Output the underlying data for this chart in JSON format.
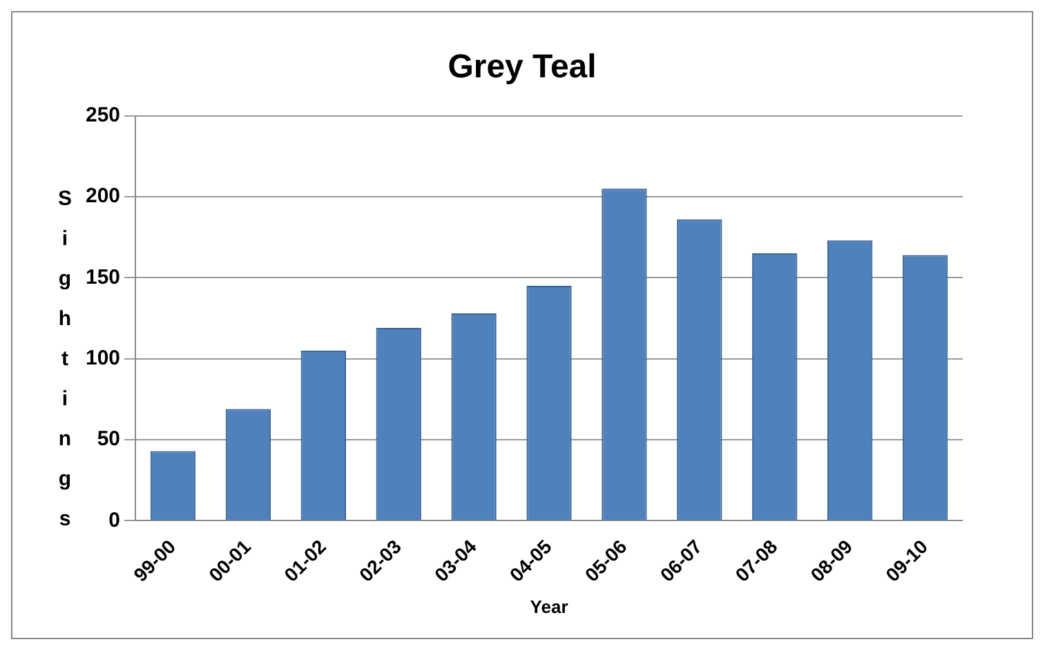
{
  "chart_data": {
    "type": "bar",
    "title": "Grey Teal",
    "xlabel": "Year",
    "ylabel": "Sightings",
    "categories": [
      "99-00",
      "00-01",
      "01-02",
      "02-03",
      "03-04",
      "04-05",
      "05-06",
      "06-07",
      "07-08",
      "08-09",
      "09-10"
    ],
    "values": [
      43,
      69,
      105,
      119,
      128,
      145,
      205,
      186,
      165,
      173,
      164
    ],
    "color": "#4f81bd",
    "ylim": [
      0,
      250
    ],
    "yticks": [
      0,
      50,
      100,
      150,
      200,
      250
    ],
    "grid": "y",
    "legend": false
  }
}
